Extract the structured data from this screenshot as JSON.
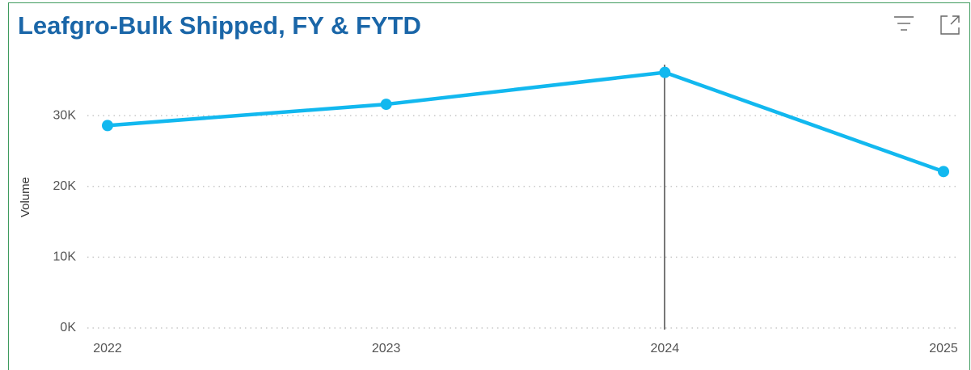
{
  "chart_data": {
    "type": "line",
    "title": "Leafgro-Bulk Shipped, FY & FYTD",
    "y_label": "Volume",
    "categories": [
      "2022",
      "2023",
      "2024",
      "2025"
    ],
    "series": [
      {
        "name": "Volume",
        "color": "#12b8ef",
        "values": [
          28600,
          31600,
          36100,
          22100
        ]
      }
    ],
    "ylim": [
      0,
      37200
    ],
    "yticks": [
      {
        "value": 0,
        "label": "0K"
      },
      {
        "value": 10000,
        "label": "10K"
      },
      {
        "value": 20000,
        "label": "20K"
      },
      {
        "value": 30000,
        "label": "30K"
      }
    ],
    "grid": true
  }
}
